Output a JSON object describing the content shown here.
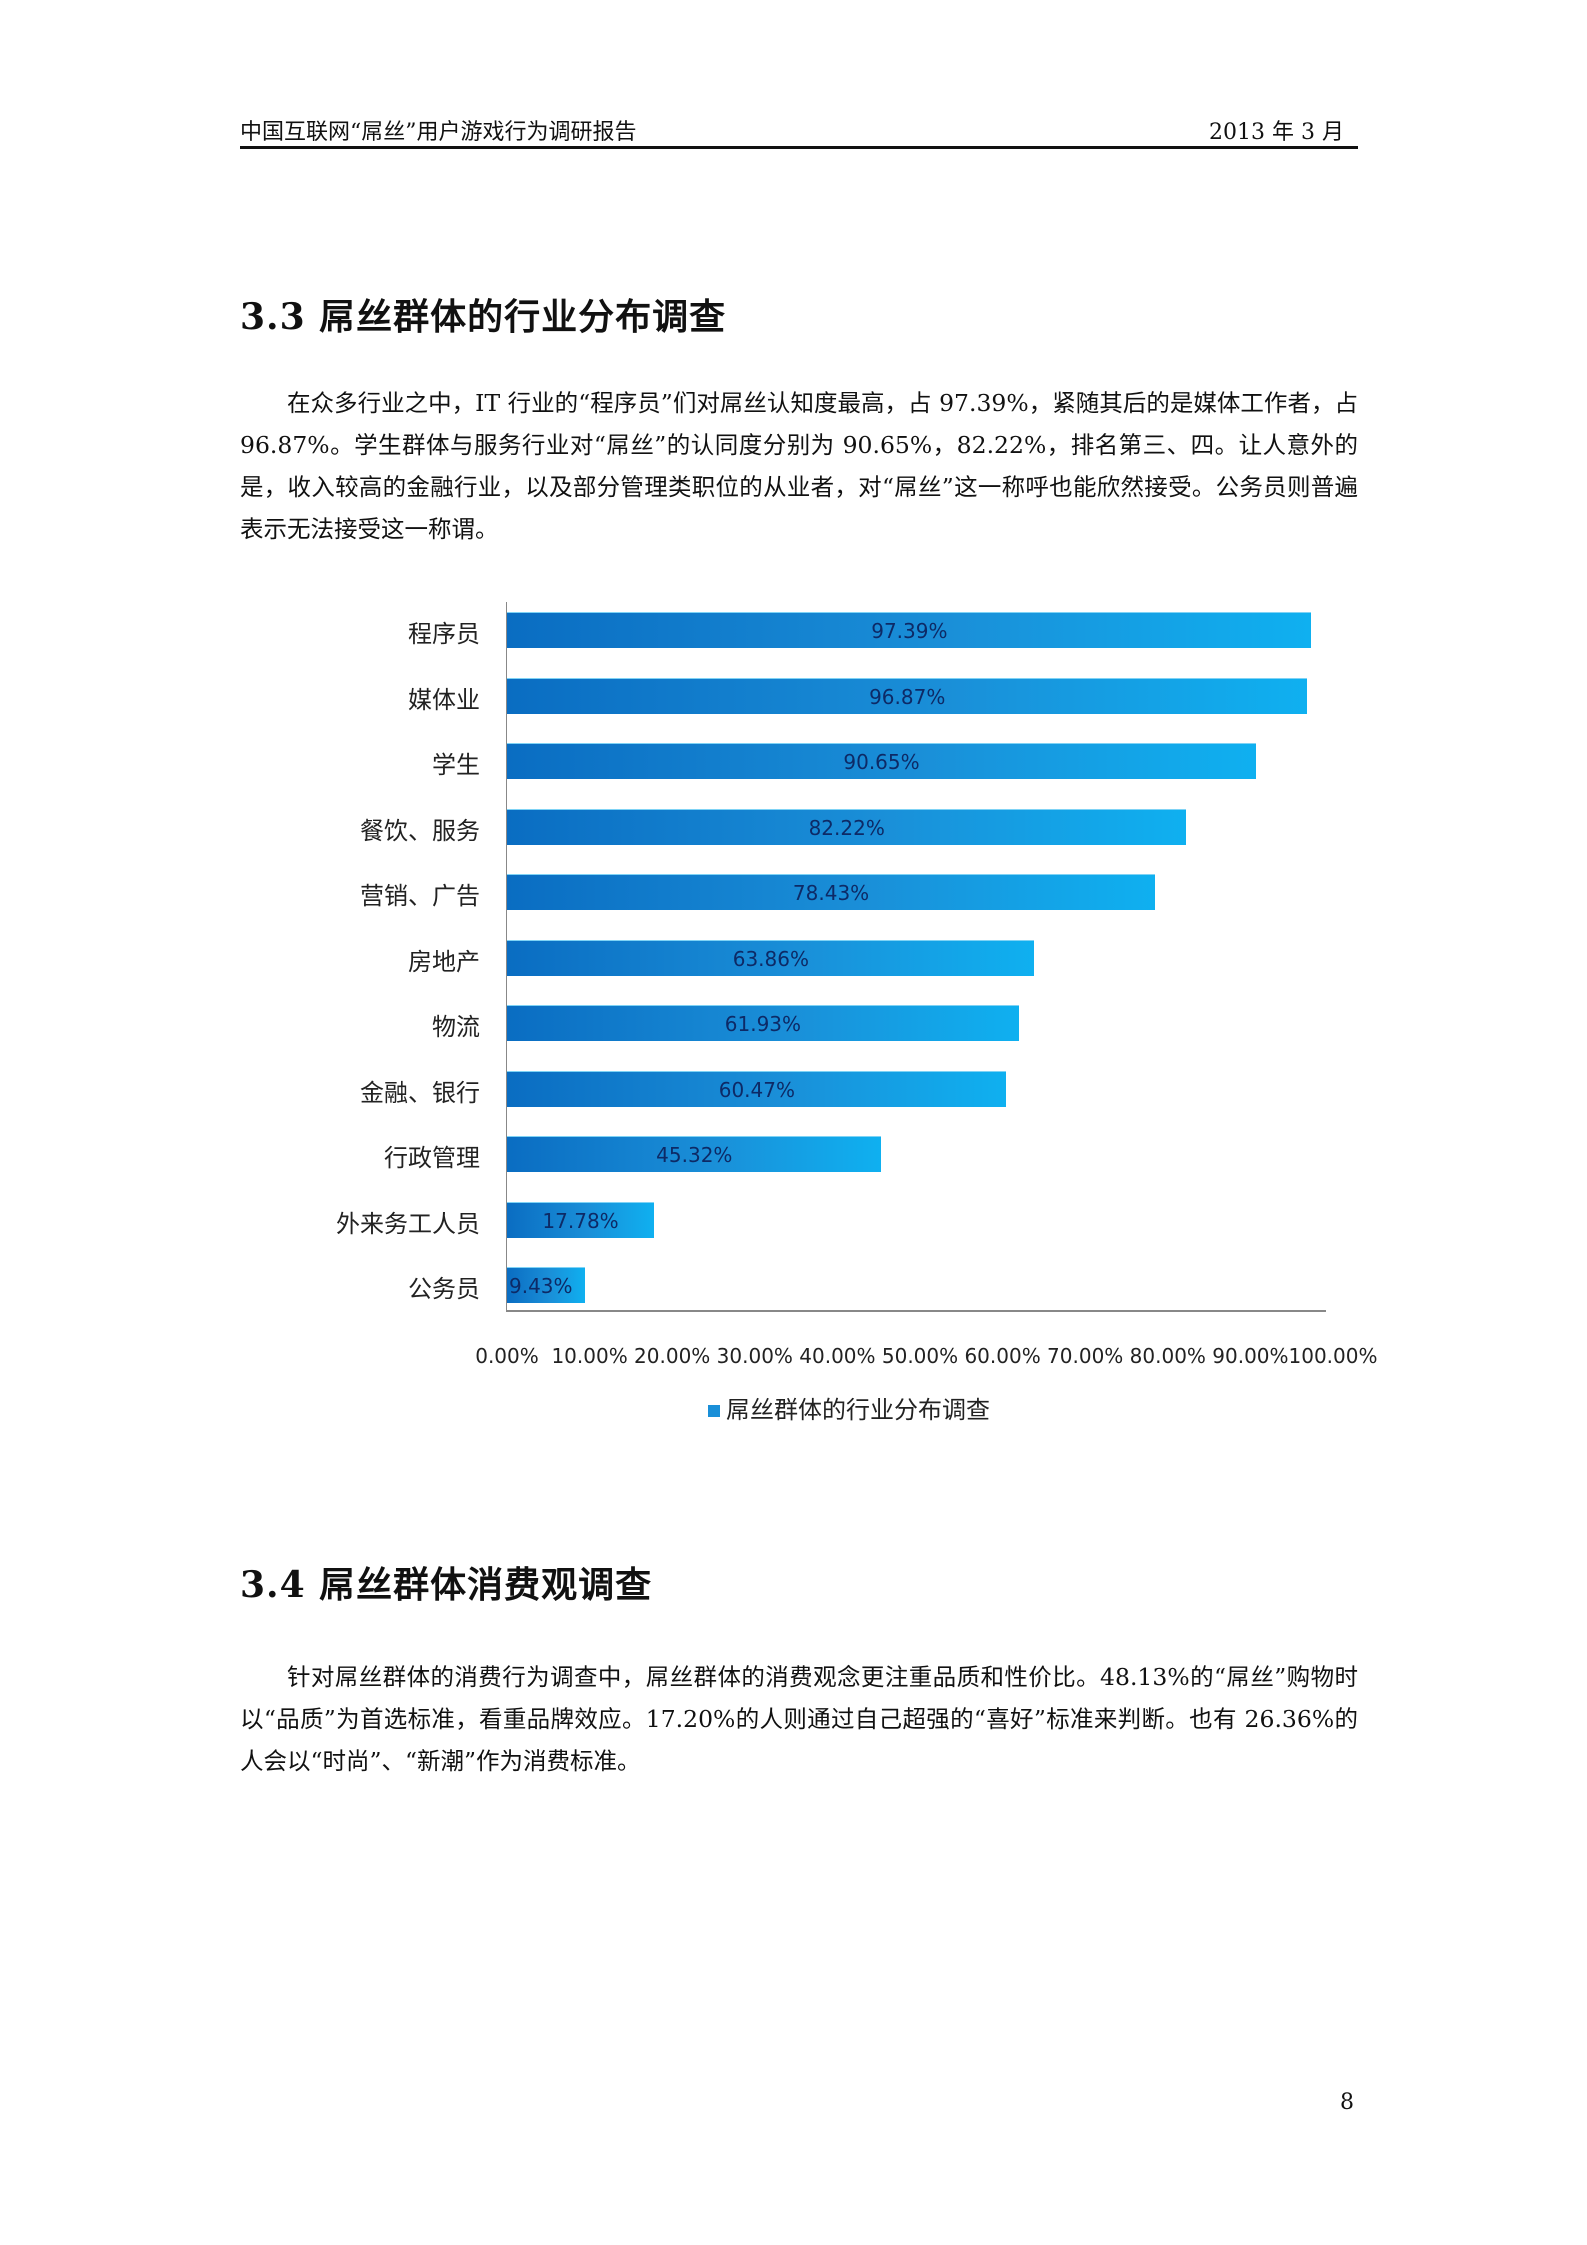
{
  "header": {
    "title": "中国互联网“屌丝”用户游戏行为调研报告",
    "date": "2013 年 3 月"
  },
  "section_3_3": {
    "heading": "3.3 屌丝群体的行业分布调查",
    "paragraph": "在众多行业之中，IT 行业的“程序员”们对屌丝认知度最高，占 97.39%，紧随其后的是媒体工作者，占 96.87%。学生群体与服务行业对“屌丝”的认同度分别为 90.65%，82.22%，排名第三、四。让人意外的是，收入较高的金融行业，以及部分管理类职位的从业者，对“屌丝”这一称呼也能欣然接受。公务员则普遍表示无法接受这一称谓。"
  },
  "chart_data": {
    "type": "bar",
    "orientation": "horizontal",
    "title": "",
    "categories": [
      "程序员",
      "媒体业",
      "学生",
      "餐饮、服务",
      "营销、广告",
      "房地产",
      "物流",
      "金融、银行",
      "行政管理",
      "外来务工人员",
      "公务员"
    ],
    "values": [
      97.39,
      96.87,
      90.65,
      82.22,
      78.43,
      63.86,
      61.93,
      60.47,
      45.32,
      17.78,
      9.43
    ],
    "value_labels": [
      "97.39%",
      "96.87%",
      "90.65%",
      "82.22%",
      "78.43%",
      "63.86%",
      "61.93%",
      "60.47%",
      "45.32%",
      "17.78%",
      "9.43%"
    ],
    "series": [
      {
        "name": "屌丝群体的行业分布调查",
        "values": [
          97.39,
          96.87,
          90.65,
          82.22,
          78.43,
          63.86,
          61.93,
          60.47,
          45.32,
          17.78,
          9.43
        ]
      }
    ],
    "xlabel": "",
    "ylabel": "",
    "xlim": [
      0,
      100
    ],
    "x_ticks": [
      "0.00%",
      "10.00%",
      "20.00%",
      "30.00%",
      "40.00%",
      "50.00%",
      "60.00%",
      "70.00%",
      "80.00%",
      "90.00%",
      "100.00%"
    ],
    "legend": "屌丝群体的行业分布调查",
    "legend_position": "bottom",
    "grid": false,
    "bar_color": "#1a8fd8"
  },
  "section_3_4": {
    "heading": "3.4 屌丝群体消费观调查",
    "paragraph": "针对屌丝群体的消费行为调查中，屌丝群体的消费观念更注重品质和性价比。48.13%的“屌丝”购物时以“品质”为首选标准，看重品牌效应。17.20%的人则通过自己超强的“喜好”标准来判断。也有 26.36%的人会以“时尚”、“新潮”作为消费标准。"
  },
  "footer": {
    "page_number": "8"
  }
}
